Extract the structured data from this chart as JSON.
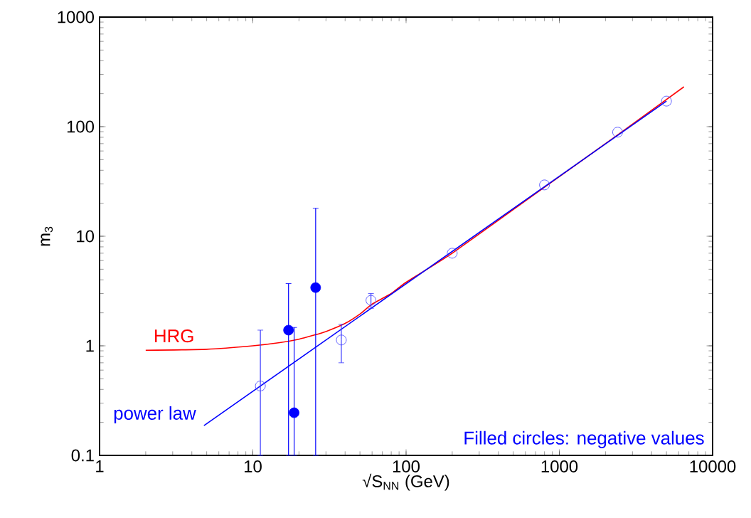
{
  "chart_data": {
    "type": "scatter",
    "xlabel": "√S$_{NN}$ (GeV)",
    "ylabel": "m$_{3}$",
    "log": "xy",
    "xlim": [
      1,
      10000
    ],
    "ylim": [
      0.1,
      1000
    ],
    "xticks": [
      1,
      10,
      100,
      1000,
      10000
    ],
    "yticks": [
      0.1,
      1,
      10,
      100,
      1000
    ],
    "grid": false,
    "annotations": [
      "Filled circles: negative values"
    ],
    "series": [
      {
        "type": "line",
        "name": "HRG",
        "color": "#ff0000",
        "marker": "none",
        "x": [
          2,
          5,
          10,
          15,
          20,
          25,
          30,
          40,
          50,
          60,
          80,
          100,
          200,
          800,
          2400,
          6500
        ],
        "values": [
          0.91,
          0.93,
          1.0,
          1.07,
          1.15,
          1.25,
          1.35,
          1.6,
          1.95,
          2.4,
          3.0,
          3.8,
          7.0,
          28,
          84,
          231
        ]
      },
      {
        "type": "line",
        "name": "power law",
        "color": "#0000ff",
        "marker": "none",
        "x": [
          4.8,
          5000
        ],
        "values": [
          0.187,
          171
        ]
      },
      {
        "color": "#3a3aff",
        "marker": "circle",
        "x": [
          11.2,
          37.8,
          59,
          200,
          800,
          2400,
          5000
        ],
        "values": [
          0.43,
          1.13,
          2.6,
          7.0,
          29.4,
          89,
          171
        ],
        "errors": [
          [
            0.1,
            1.39
          ],
          [
            0.7,
            1.57
          ],
          [
            2.2,
            3.0
          ],
          null,
          null,
          null,
          null
        ]
      },
      {
        "color": "#0000ff",
        "marker": "circle",
        "x": [
          17.1,
          18.6,
          25.7
        ],
        "values": [
          1.39,
          0.245,
          3.4
        ],
        "errors": [
          [
            0.1,
            3.7
          ],
          [
            0.1,
            1.47
          ],
          [
            0.1,
            18
          ]
        ]
      }
    ]
  }
}
